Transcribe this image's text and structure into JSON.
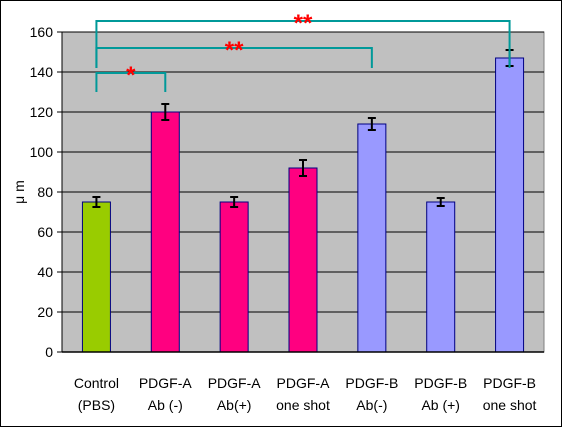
{
  "chart_data": {
    "type": "bar",
    "ylabel": "μ m",
    "ylim": [
      0,
      160
    ],
    "yticks": [
      0,
      20,
      40,
      60,
      80,
      100,
      120,
      140,
      160
    ],
    "grid": true,
    "plot_background": "#c0c0c0",
    "categories": [
      [
        "Control",
        "(PBS)"
      ],
      [
        "PDGF-A",
        "Ab (-)"
      ],
      [
        "PDGF-A",
        "Ab(+)"
      ],
      [
        "PDGF-A",
        "one shot"
      ],
      [
        "PDGF-B",
        "Ab(-)"
      ],
      [
        "PDGF-B",
        "Ab (+)"
      ],
      [
        "PDGF-B",
        "one shot"
      ]
    ],
    "values": [
      75,
      120,
      75,
      92,
      114,
      75,
      147
    ],
    "errors": [
      2.5,
      4,
      2.5,
      4,
      3,
      2,
      4
    ],
    "bar_colors": [
      "#99cc00",
      "#ff0080",
      "#ff0080",
      "#ff0080",
      "#9999ff",
      "#9999ff",
      "#9999ff"
    ],
    "significance": [
      {
        "from": 0,
        "to": 1,
        "label": "*"
      },
      {
        "from": 0,
        "to": 4,
        "label": "**"
      },
      {
        "from": 0,
        "to": 6,
        "label": "**"
      }
    ],
    "colors": {
      "bracket": "#009999",
      "star": "#ff0000"
    }
  }
}
